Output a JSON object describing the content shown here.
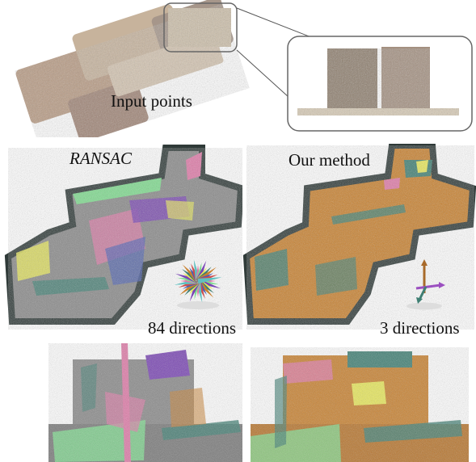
{
  "labels": {
    "input_points": "Input points",
    "ransac": "RANSAC",
    "our_method": "Our method",
    "ransac_directions": "84 directions",
    "our_directions": "3 directions"
  },
  "colors": {
    "orange_floor": "#c9812e",
    "grey_floor": "#8a8a8a",
    "dark_wall": "#2f3a38",
    "green_plane": "#7fdc8f",
    "purple_plane": "#7a45b5",
    "pink_plane": "#e07aa8",
    "yellow_plane": "#e8e85a",
    "teal_plane": "#3f7f73"
  }
}
